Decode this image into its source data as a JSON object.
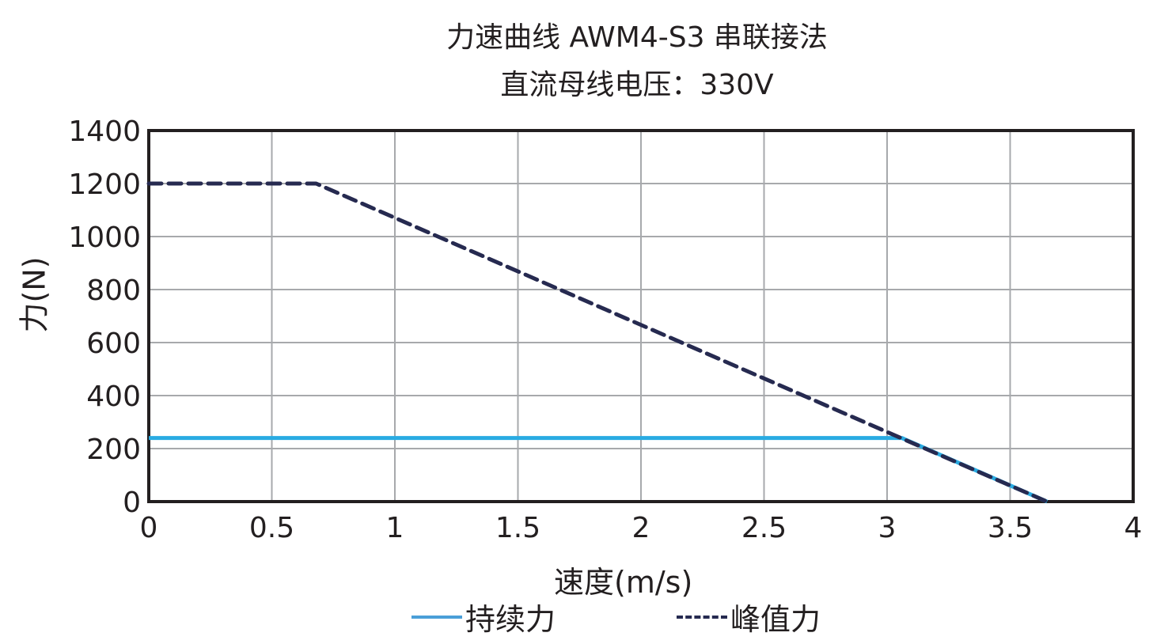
{
  "chart_data": {
    "type": "line",
    "title": "力速曲线 AWM4-S3 串联接法",
    "subtitle": "直流母线电压：330V",
    "xlabel": "速度(m/s)",
    "ylabel": "力(N)",
    "xlim": [
      0,
      4
    ],
    "ylim": [
      0,
      1400
    ],
    "xticks": [
      "0",
      "0.5",
      "1",
      "1.5",
      "2",
      "2.5",
      "3",
      "3.5",
      "4"
    ],
    "yticks": [
      "0",
      "200",
      "400",
      "600",
      "800",
      "1000",
      "1200",
      "1400"
    ],
    "grid": true,
    "legend_position": "bottom",
    "series": [
      {
        "name": "持续力",
        "style": "solid",
        "color": "#29abe2",
        "x": [
          0,
          3.06,
          3.65
        ],
        "y": [
          240,
          240,
          0
        ]
      },
      {
        "name": "峰值力",
        "style": "dashed",
        "color": "#262a50",
        "x": [
          0,
          0.68,
          3.65
        ],
        "y": [
          1200,
          1200,
          0
        ]
      }
    ]
  },
  "legend": {
    "continuous": "持续力",
    "continuous_swatch": "——",
    "peak": "峰值力",
    "peak_swatch": "-----"
  }
}
